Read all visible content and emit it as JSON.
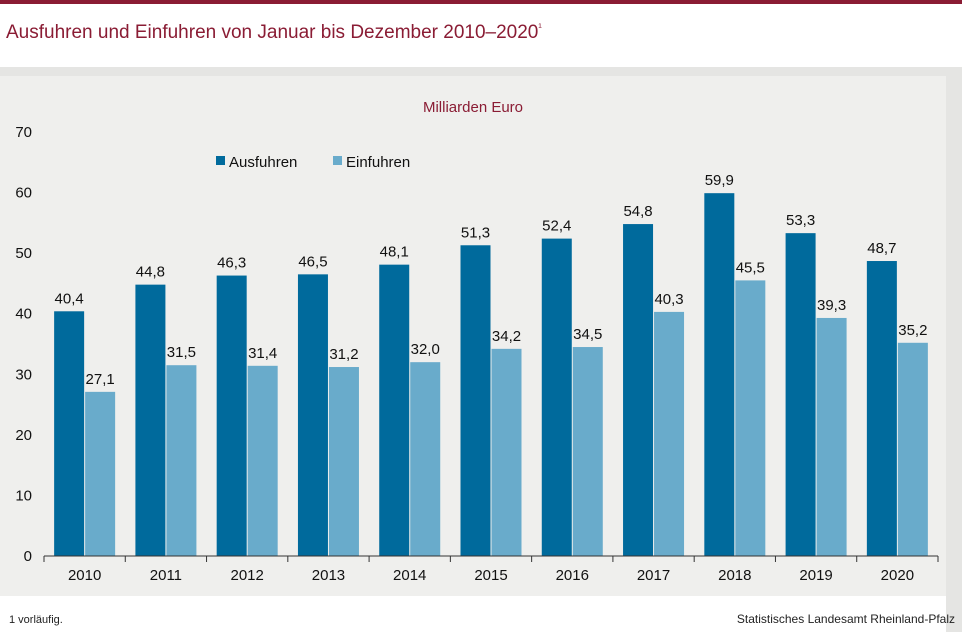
{
  "title": "Ausfuhren und Einfuhren von Januar bis Dezember 2010–2020",
  "title_note_marker": "¹",
  "footnote": "1 vorläufig.",
  "source": "Statistisches Landesamt Rheinland-Pfalz",
  "colors": {
    "accent": "#8a1c34",
    "ausfuhren": "#006a9c",
    "einfuhren": "#69abcb",
    "panel": "#efefed"
  },
  "chart_data": {
    "type": "bar",
    "unit_label": "Milliarden Euro",
    "categories": [
      "2010",
      "2011",
      "2012",
      "2013",
      "2014",
      "2015",
      "2016",
      "2017",
      "2018",
      "2019",
      "2020"
    ],
    "series": [
      {
        "name": "Ausfuhren",
        "values": [
          40.4,
          44.8,
          46.3,
          46.5,
          48.1,
          51.3,
          52.4,
          54.8,
          59.9,
          53.3,
          48.7
        ],
        "labels": [
          "40,4",
          "44,8",
          "46,3",
          "46,5",
          "48,1",
          "51,3",
          "52,4",
          "54,8",
          "59,9",
          "53,3",
          "48,7"
        ]
      },
      {
        "name": "Einfuhren",
        "values": [
          27.1,
          31.5,
          31.4,
          31.2,
          32.0,
          34.2,
          34.5,
          40.3,
          45.5,
          39.3,
          35.2
        ],
        "labels": [
          "27,1",
          "31,5",
          "31,4",
          "31,2",
          "32,0",
          "34,2",
          "34,5",
          "40,3",
          "45,5",
          "39,3",
          "35,2"
        ]
      }
    ],
    "yticks": [
      "0",
      "10",
      "20",
      "30",
      "40",
      "50",
      "60",
      "70"
    ],
    "ylim": [
      0,
      70
    ],
    "grid": false,
    "legend_position": "top-left"
  }
}
